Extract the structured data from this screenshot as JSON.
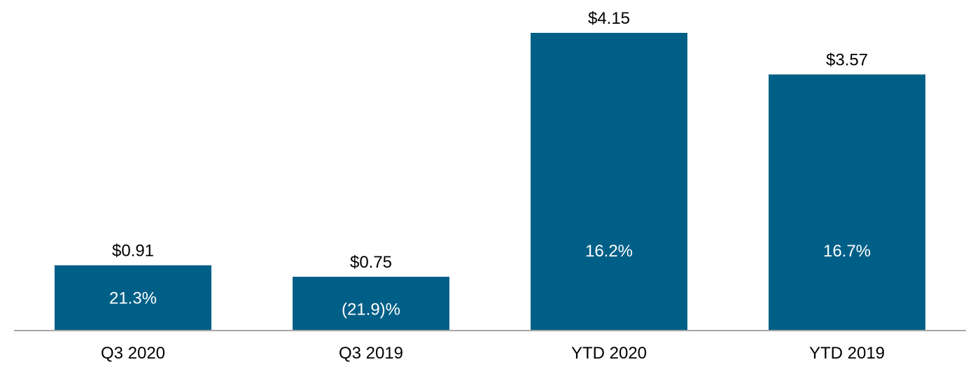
{
  "colors": {
    "bar": "#005f87",
    "axis": "#a6a6a6",
    "text": "#000000",
    "inner_text": "#ffffff"
  },
  "chart_data": {
    "type": "bar",
    "title": "",
    "xlabel": "",
    "ylabel": "",
    "ylim": [
      0,
      4.15
    ],
    "grid": false,
    "categories": [
      "Q3 2020",
      "Q3 2019",
      "YTD 2020",
      "YTD 2019"
    ],
    "values": [
      0.91,
      0.75,
      4.15,
      3.57
    ],
    "value_labels": [
      "$0.91",
      "$0.75",
      "$4.15",
      "$3.57"
    ],
    "inner_labels": [
      "21.3%",
      "(21.9)%",
      "16.2%",
      "16.7%"
    ]
  }
}
